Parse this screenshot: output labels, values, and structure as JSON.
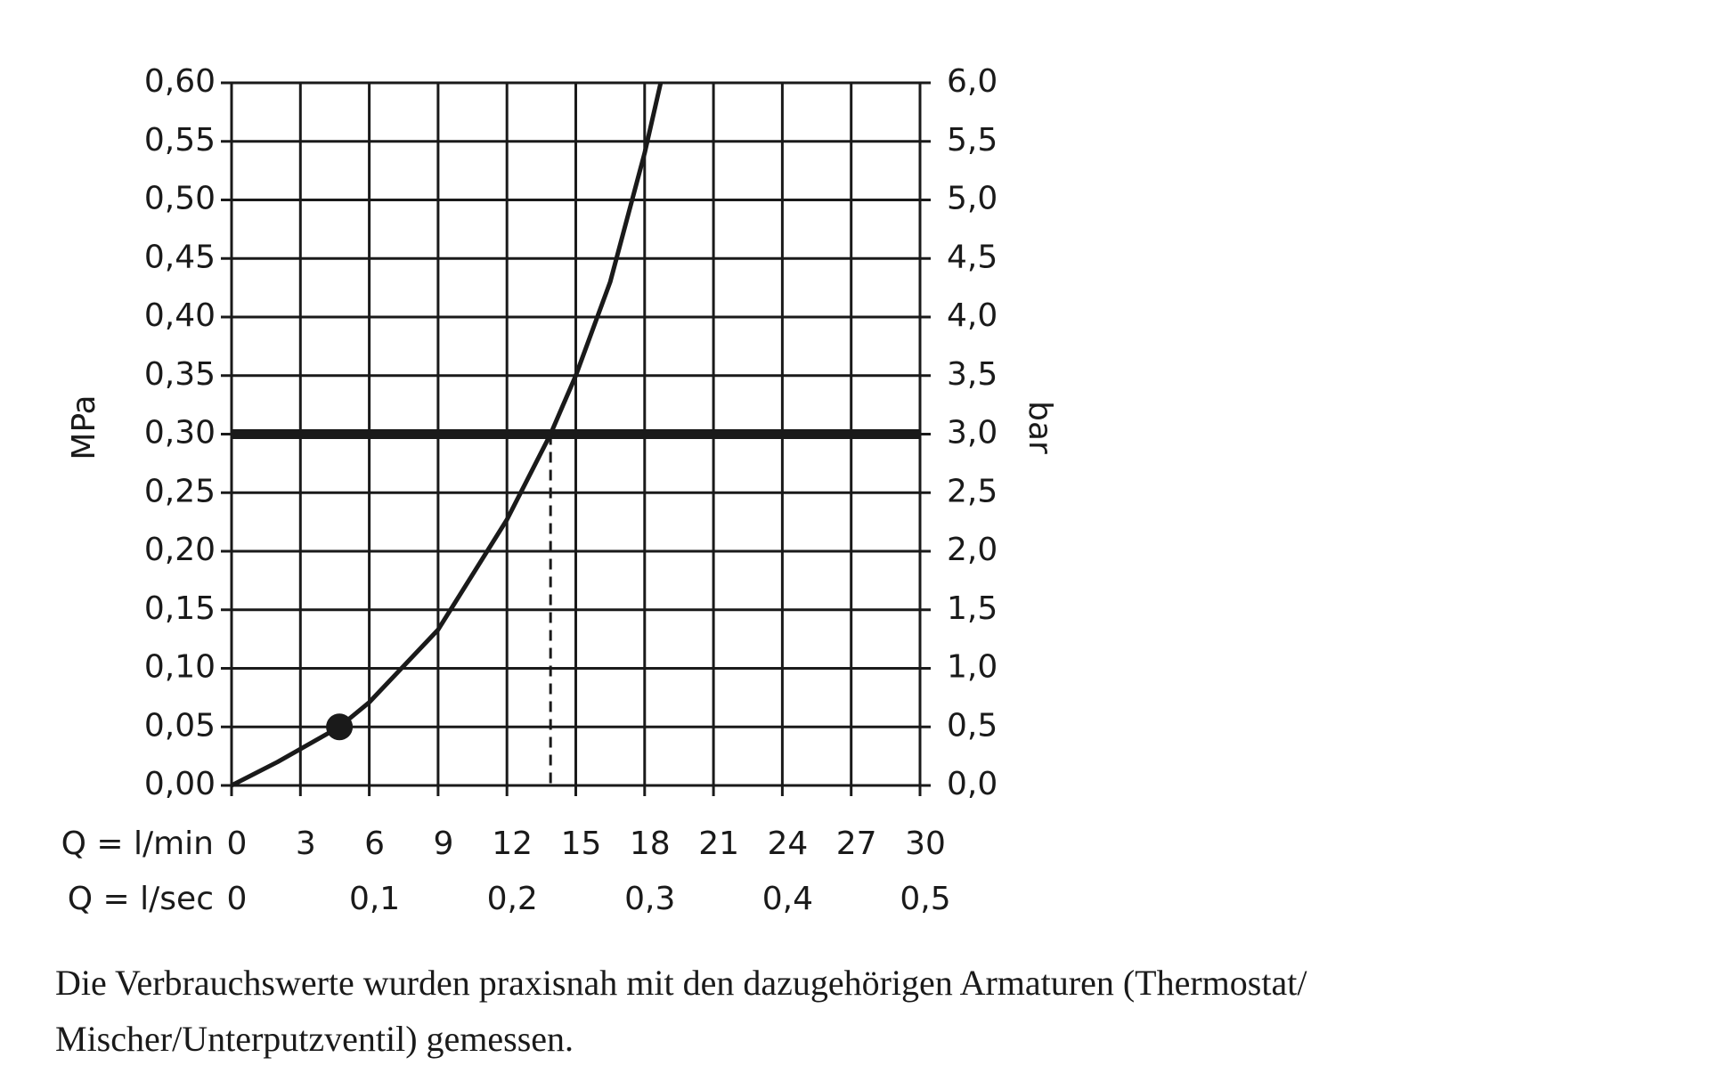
{
  "chart_data": {
    "type": "line",
    "y_label": "MPa",
    "y2_label": "bar",
    "x_label": "Q = l/min",
    "x2_label": "Q = l/sec",
    "x": [
      0,
      2,
      4.7,
      6,
      9,
      12,
      13.9,
      15,
      16.5,
      18,
      18.7
    ],
    "series": [
      {
        "color": "#1a1a1a",
        "values": [
          0,
          0.02,
          0.05,
          0.071,
          0.133,
          0.227,
          0.3,
          0.35,
          0.43,
          0.54,
          0.6
        ]
      }
    ],
    "marker": {
      "x": 4.7,
      "y": 0.05
    },
    "reference": {
      "x": 13.9,
      "y": 0.3
    },
    "xlim": [
      0,
      30
    ],
    "xticks": [
      0,
      3,
      6,
      9,
      12,
      15,
      18,
      21,
      24,
      27,
      30
    ],
    "x2lim": [
      0,
      0.5
    ],
    "x2ticks": [
      0,
      {
        "value": 0.1,
        "label": "0,1"
      },
      {
        "value": 0.2,
        "label": "0,2"
      },
      {
        "value": 0.3,
        "label": "0,3"
      },
      {
        "value": 0.4,
        "label": "0,4"
      },
      {
        "value": 0.5,
        "label": "0,5"
      }
    ],
    "ylim": [
      0,
      0.6
    ],
    "yticks": [
      {
        "value": 0,
        "label": "0,00"
      },
      {
        "value": 0.05,
        "label": "0,05"
      },
      {
        "value": 0.1,
        "label": "0,10"
      },
      {
        "value": 0.15,
        "label": "0,15"
      },
      {
        "value": 0.2,
        "label": "0,20"
      },
      {
        "value": 0.25,
        "label": "0,25"
      },
      {
        "value": 0.3,
        "label": "0,30"
      },
      {
        "value": 0.35,
        "label": "0,35"
      },
      {
        "value": 0.4,
        "label": "0,40"
      },
      {
        "value": 0.45,
        "label": "0,45"
      },
      {
        "value": 0.5,
        "label": "0,50"
      },
      {
        "value": 0.55,
        "label": "0,55"
      },
      {
        "value": 0.6,
        "label": "0,60"
      }
    ],
    "y2lim": [
      0,
      6
    ],
    "y2ticks": [
      {
        "value": 0,
        "label": "0,0"
      },
      {
        "value": 0.5,
        "label": "0,5"
      },
      {
        "value": 1,
        "label": "1,0"
      },
      {
        "value": 1.5,
        "label": "1,5"
      },
      {
        "value": 2,
        "label": "2,0"
      },
      {
        "value": 2.5,
        "label": "2,5"
      },
      {
        "value": 3,
        "label": "3,0"
      },
      {
        "value": 3.5,
        "label": "3,5"
      },
      {
        "value": 4,
        "label": "4,0"
      },
      {
        "value": 4.5,
        "label": "4,5"
      },
      {
        "value": 5,
        "label": "5,0"
      },
      {
        "value": 5.5,
        "label": "5,5"
      },
      {
        "value": 6,
        "label": "6,0"
      }
    ],
    "grid": true,
    "footnote": [
      "Die Verbrauchswerte wurden praxisnah mit den dazugehörigen Armaturen (Thermostat/",
      "Mischer/Unterputzventil) gemessen."
    ]
  }
}
